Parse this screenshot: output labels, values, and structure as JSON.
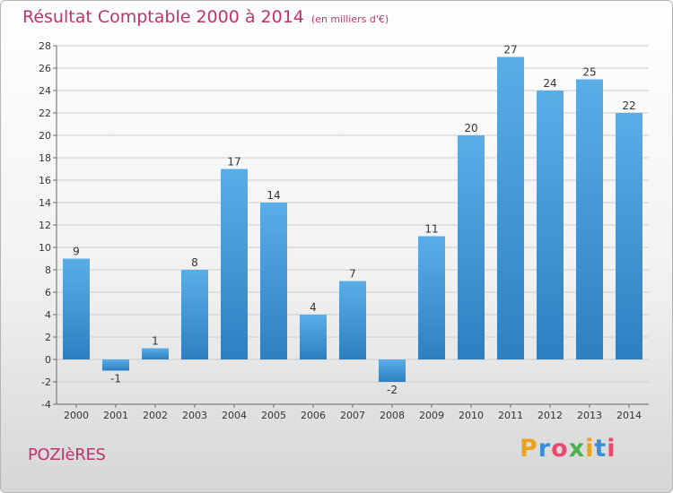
{
  "header": {
    "title": "Résultat Comptable 2000 à 2014",
    "subtitle": "(en milliers d'€)"
  },
  "footer": {
    "place": "POZIèRES",
    "logo": "Proxiti",
    "logo_colors": [
      "#e8a321",
      "#3b8fd6",
      "#e84a6f",
      "#4bb04f",
      "#e8a321",
      "#3b8fd6",
      "#e84a6f"
    ]
  },
  "colors": {
    "title": "#c0326d",
    "bar_top": "#5aaee8",
    "bar_bottom": "#2e7fc0",
    "grid": "#cccccc"
  },
  "chart_data": {
    "type": "bar",
    "title": "Résultat Comptable 2000 à 2014",
    "xlabel": "",
    "ylabel": "",
    "categories": [
      "2000",
      "2001",
      "2002",
      "2003",
      "2004",
      "2005",
      "2006",
      "2007",
      "2008",
      "2009",
      "2010",
      "2011",
      "2012",
      "2013",
      "2014"
    ],
    "values": [
      9,
      -1,
      1,
      8,
      17,
      14,
      4,
      7,
      -2,
      11,
      20,
      27,
      24,
      25,
      22
    ],
    "ylim": [
      -4,
      28
    ],
    "yticks": [
      -4,
      -2,
      0,
      2,
      4,
      6,
      8,
      10,
      12,
      14,
      16,
      18,
      20,
      22,
      24,
      26,
      28
    ],
    "grid": true,
    "legend": "none"
  }
}
